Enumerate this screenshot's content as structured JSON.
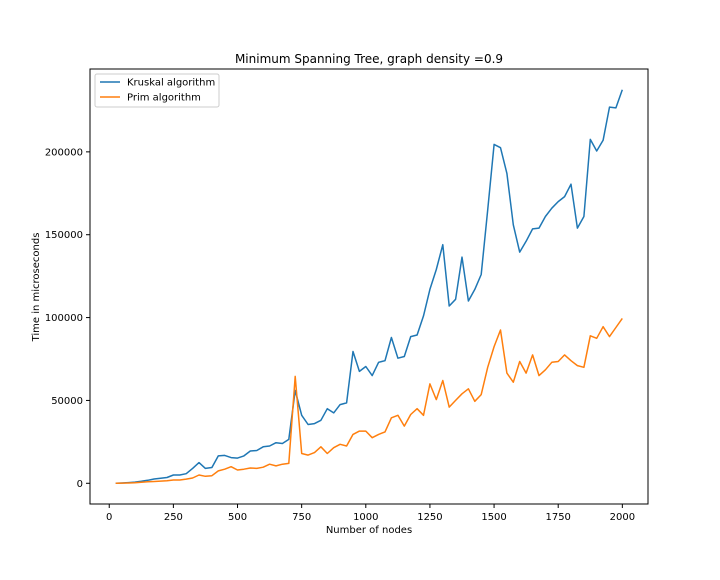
{
  "chart_data": {
    "type": "line",
    "title": "Minimum Spanning Tree, graph density =0.9",
    "xlabel": "Number of nodes",
    "ylabel": "Time in microseconds",
    "xlim": [
      -75,
      2100
    ],
    "ylim": [
      -12500,
      250000
    ],
    "xticks": [
      0,
      250,
      500,
      750,
      1000,
      1250,
      1500,
      1750,
      2000
    ],
    "xtick_labels": [
      "0",
      "250",
      "500",
      "750",
      "1000",
      "1250",
      "1500",
      "1750",
      "2000"
    ],
    "yticks": [
      0,
      50000,
      100000,
      150000,
      200000
    ],
    "ytick_labels": [
      "0",
      "50000",
      "100000",
      "150000",
      "200000"
    ],
    "grid": false,
    "legend_position": "top-left",
    "x": [
      25,
      50,
      75,
      100,
      125,
      150,
      175,
      200,
      225,
      250,
      275,
      300,
      325,
      350,
      375,
      400,
      425,
      450,
      475,
      500,
      525,
      550,
      575,
      600,
      625,
      650,
      675,
      700,
      725,
      750,
      775,
      800,
      825,
      850,
      875,
      900,
      925,
      950,
      975,
      1000,
      1025,
      1050,
      1075,
      1100,
      1125,
      1150,
      1175,
      1200,
      1225,
      1250,
      1275,
      1300,
      1325,
      1350,
      1375,
      1400,
      1425,
      1450,
      1475,
      1500,
      1525,
      1550,
      1575,
      1600,
      1625,
      1650,
      1675,
      1700,
      1725,
      1750,
      1775,
      1800,
      1825,
      1850,
      1875,
      1900,
      1925,
      1950,
      1975,
      2000
    ],
    "series": [
      {
        "name": "Kruskal algorithm",
        "color": "#1f77b4",
        "values": [
          0,
          200,
          400,
          700,
          1200,
          1800,
          2600,
          3000,
          3500,
          5000,
          5000,
          5800,
          9000,
          12500,
          9000,
          9500,
          16500,
          16800,
          15500,
          15200,
          16500,
          19500,
          19800,
          22000,
          22500,
          24500,
          24000,
          26500,
          56000,
          41000,
          35500,
          36000,
          38000,
          45000,
          42500,
          47500,
          48500,
          79500,
          67500,
          70500,
          65000,
          73000,
          74000,
          88000,
          75500,
          76500,
          88500,
          89500,
          101000,
          117000,
          129000,
          144000,
          107000,
          111000,
          136500,
          110000,
          117000,
          126000,
          165000,
          204500,
          202500,
          187000,
          156000,
          139500,
          146000,
          153500,
          154000,
          161000,
          166000,
          170000,
          173000,
          180500,
          154000,
          161000,
          207500,
          200500,
          207000,
          227000,
          226500,
          237500
        ]
      },
      {
        "name": "Prim algorithm",
        "color": "#ff7f0e",
        "values": [
          0,
          100,
          200,
          300,
          600,
          900,
          1100,
          1300,
          1500,
          2000,
          2000,
          2500,
          3200,
          5000,
          4200,
          4600,
          7500,
          8500,
          10000,
          8000,
          8500,
          9200,
          9000,
          9700,
          11500,
          10500,
          11500,
          12000,
          64500,
          18000,
          17000,
          18500,
          22000,
          18000,
          21500,
          23500,
          22500,
          29500,
          31500,
          31500,
          27500,
          29500,
          31000,
          39500,
          41000,
          34500,
          41500,
          45000,
          41000,
          60000,
          50500,
          62000,
          46000,
          50000,
          54000,
          57000,
          49500,
          53500,
          70000,
          82500,
          92500,
          66500,
          61000,
          73500,
          66500,
          77500,
          65000,
          68500,
          73000,
          73500,
          77500,
          74000,
          71000,
          70000,
          89000,
          87500,
          94500,
          88500,
          94000,
          99500
        ]
      }
    ]
  }
}
